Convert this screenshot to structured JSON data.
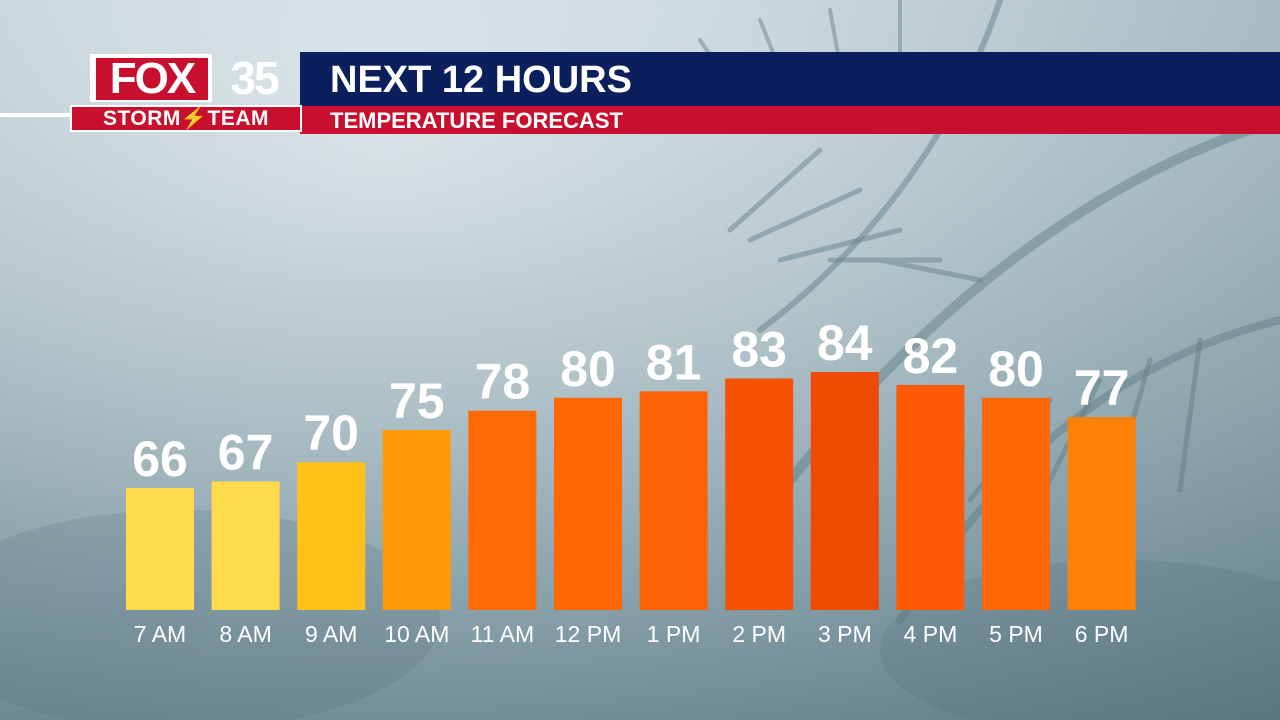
{
  "header": {
    "logo_brand": "FOX",
    "logo_number": "35",
    "logo_team": "STORM⚡TEAM",
    "title": "NEXT 12 HOURS",
    "subtitle": "TEMPERATURE FORECAST"
  },
  "colors": {
    "navy": "#0b1f5c",
    "red": "#c8102e"
  },
  "chart_data": {
    "type": "bar",
    "title": "NEXT 12 HOURS",
    "subtitle": "TEMPERATURE FORECAST",
    "xlabel": "",
    "ylabel": "",
    "grid": false,
    "legend": "none",
    "categories": [
      "7 AM",
      "8 AM",
      "9 AM",
      "10 AM",
      "11 AM",
      "12 PM",
      "1 PM",
      "2 PM",
      "3 PM",
      "4 PM",
      "5 PM",
      "6 PM"
    ],
    "values": [
      66,
      67,
      70,
      75,
      78,
      80,
      81,
      83,
      84,
      82,
      80,
      77
    ],
    "bar_colors": [
      "#fedb4a",
      "#fedb4a",
      "#fec11a",
      "#fe9a0a",
      "#fe6a08",
      "#fe6606",
      "#fe6204",
      "#f75202",
      "#ef4a02",
      "#fe5a04",
      "#fe6606",
      "#fe8004"
    ]
  }
}
